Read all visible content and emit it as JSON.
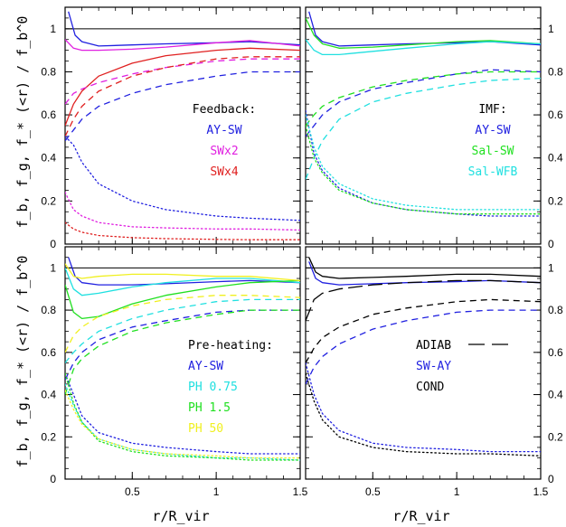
{
  "figure": {
    "ylabel": "f_b, f_g, f_* (<r) / f_b^0",
    "xlabel": "r/R_vir"
  },
  "chart_data": [
    {
      "type": "line",
      "panel": "top-left",
      "xlim": [
        0.1,
        1.5
      ],
      "ylim": [
        0,
        1.1
      ],
      "xticks": [
        "0.5",
        "1",
        "1.5"
      ],
      "yticks": [
        "0",
        "0.2",
        "0.4",
        "0.6",
        "0.8",
        "1"
      ],
      "legend_title": "Feedback:",
      "legend_items": [
        {
          "label": "AY-SW",
          "color": "#2020e0"
        },
        {
          "label": "SWx2",
          "color": "#e020e0"
        },
        {
          "label": "SWx4",
          "color": "#e02020"
        }
      ],
      "reference_line": 1.0,
      "series": [
        {
          "color": "#2020e0",
          "style": "solid",
          "x": [
            0.12,
            0.16,
            0.2,
            0.3,
            0.5,
            0.7,
            1.0,
            1.2,
            1.5
          ],
          "y": [
            1.08,
            0.97,
            0.94,
            0.92,
            0.925,
            0.93,
            0.935,
            0.94,
            0.925
          ]
        },
        {
          "color": "#e020e0",
          "style": "solid",
          "x": [
            0.1,
            0.15,
            0.2,
            0.3,
            0.5,
            0.7,
            1.0,
            1.2,
            1.5
          ],
          "y": [
            0.95,
            0.91,
            0.9,
            0.9,
            0.905,
            0.915,
            0.935,
            0.945,
            0.92
          ]
        },
        {
          "color": "#e02020",
          "style": "solid",
          "x": [
            0.1,
            0.15,
            0.2,
            0.3,
            0.5,
            0.7,
            1.0,
            1.2,
            1.5
          ],
          "y": [
            0.55,
            0.65,
            0.71,
            0.78,
            0.84,
            0.875,
            0.9,
            0.91,
            0.9
          ]
        },
        {
          "color": "#2020e0",
          "style": "dashed",
          "x": [
            0.1,
            0.15,
            0.2,
            0.3,
            0.5,
            0.7,
            1.0,
            1.2,
            1.5
          ],
          "y": [
            0.48,
            0.53,
            0.58,
            0.64,
            0.7,
            0.74,
            0.78,
            0.8,
            0.8
          ]
        },
        {
          "color": "#e020e0",
          "style": "dashed",
          "x": [
            0.1,
            0.15,
            0.2,
            0.3,
            0.5,
            0.7,
            1.0,
            1.2,
            1.5
          ],
          "y": [
            0.65,
            0.7,
            0.72,
            0.75,
            0.79,
            0.82,
            0.85,
            0.86,
            0.86
          ]
        },
        {
          "color": "#e02020",
          "style": "dashed",
          "x": [
            0.1,
            0.15,
            0.2,
            0.3,
            0.5,
            0.7,
            1.0,
            1.2,
            1.5
          ],
          "y": [
            0.5,
            0.58,
            0.64,
            0.71,
            0.78,
            0.82,
            0.86,
            0.87,
            0.87
          ]
        },
        {
          "color": "#2020e0",
          "style": "dotted",
          "x": [
            0.1,
            0.15,
            0.2,
            0.3,
            0.5,
            0.7,
            1.0,
            1.2,
            1.5
          ],
          "y": [
            0.5,
            0.46,
            0.38,
            0.28,
            0.2,
            0.16,
            0.13,
            0.12,
            0.11
          ]
        },
        {
          "color": "#e020e0",
          "style": "dotted",
          "x": [
            0.1,
            0.15,
            0.2,
            0.3,
            0.5,
            0.7,
            1.0,
            1.2,
            1.5
          ],
          "y": [
            0.24,
            0.16,
            0.13,
            0.1,
            0.08,
            0.075,
            0.07,
            0.07,
            0.065
          ]
        },
        {
          "color": "#e02020",
          "style": "dotted",
          "x": [
            0.1,
            0.15,
            0.2,
            0.3,
            0.5,
            0.7,
            1.0,
            1.2,
            1.5
          ],
          "y": [
            0.1,
            0.07,
            0.055,
            0.04,
            0.03,
            0.025,
            0.022,
            0.02,
            0.02
          ]
        }
      ]
    },
    {
      "type": "line",
      "panel": "top-right",
      "xlim": [
        0.1,
        1.5
      ],
      "ylim": [
        0,
        1.1
      ],
      "xticks": [
        "0.5",
        "1",
        "1.5"
      ],
      "yticks": [
        "0",
        "0.2",
        "0.4",
        "0.6",
        "0.8",
        "1"
      ],
      "legend_title": "IMF:",
      "legend_items": [
        {
          "label": "AY-SW",
          "color": "#2020e0"
        },
        {
          "label": "Sal-SW",
          "color": "#20e020"
        },
        {
          "label": "Sal-WFB",
          "color": "#20e0e0"
        }
      ],
      "reference_line": 1.0,
      "series": [
        {
          "color": "#2020e0",
          "style": "solid",
          "x": [
            0.12,
            0.16,
            0.2,
            0.3,
            0.5,
            0.7,
            1.0,
            1.2,
            1.5
          ],
          "y": [
            1.08,
            0.97,
            0.94,
            0.92,
            0.925,
            0.93,
            0.935,
            0.94,
            0.925
          ]
        },
        {
          "color": "#20e020",
          "style": "solid",
          "x": [
            0.1,
            0.15,
            0.2,
            0.3,
            0.5,
            0.7,
            1.0,
            1.2,
            1.5
          ],
          "y": [
            1.05,
            0.97,
            0.93,
            0.91,
            0.915,
            0.925,
            0.94,
            0.945,
            0.93
          ]
        },
        {
          "color": "#20e0e0",
          "style": "solid",
          "x": [
            0.1,
            0.15,
            0.2,
            0.3,
            0.5,
            0.7,
            1.0,
            1.2,
            1.5
          ],
          "y": [
            0.95,
            0.9,
            0.88,
            0.88,
            0.895,
            0.91,
            0.93,
            0.94,
            0.93
          ]
        },
        {
          "color": "#2020e0",
          "style": "dashed",
          "x": [
            0.1,
            0.15,
            0.2,
            0.3,
            0.5,
            0.7,
            1.0,
            1.2,
            1.5
          ],
          "y": [
            0.5,
            0.55,
            0.6,
            0.66,
            0.72,
            0.75,
            0.79,
            0.81,
            0.8
          ]
        },
        {
          "color": "#20e020",
          "style": "dashed",
          "x": [
            0.1,
            0.15,
            0.2,
            0.3,
            0.5,
            0.7,
            1.0,
            1.2,
            1.5
          ],
          "y": [
            0.55,
            0.6,
            0.64,
            0.68,
            0.73,
            0.76,
            0.79,
            0.8,
            0.8
          ]
        },
        {
          "color": "#20e0e0",
          "style": "dashed",
          "x": [
            0.1,
            0.15,
            0.2,
            0.3,
            0.5,
            0.7,
            1.0,
            1.2,
            1.5
          ],
          "y": [
            0.3,
            0.4,
            0.48,
            0.58,
            0.66,
            0.7,
            0.74,
            0.76,
            0.77
          ]
        },
        {
          "color": "#2020e0",
          "style": "dotted",
          "x": [
            0.1,
            0.15,
            0.2,
            0.3,
            0.5,
            0.7,
            1.0,
            1.2,
            1.5
          ],
          "y": [
            0.62,
            0.42,
            0.34,
            0.26,
            0.19,
            0.16,
            0.14,
            0.13,
            0.13
          ]
        },
        {
          "color": "#20e020",
          "style": "dotted",
          "x": [
            0.1,
            0.15,
            0.2,
            0.3,
            0.5,
            0.7,
            1.0,
            1.2,
            1.5
          ],
          "y": [
            0.55,
            0.4,
            0.33,
            0.25,
            0.19,
            0.16,
            0.14,
            0.14,
            0.14
          ]
        },
        {
          "color": "#20e0e0",
          "style": "dotted",
          "x": [
            0.1,
            0.15,
            0.2,
            0.3,
            0.5,
            0.7,
            1.0,
            1.2,
            1.5
          ],
          "y": [
            0.6,
            0.45,
            0.36,
            0.28,
            0.21,
            0.18,
            0.16,
            0.16,
            0.16
          ]
        }
      ]
    },
    {
      "type": "line",
      "panel": "bottom-left",
      "xlim": [
        0.1,
        1.5
      ],
      "ylim": [
        0,
        1.1
      ],
      "xticks": [
        "0.5",
        "1",
        "1.5"
      ],
      "yticks": [
        "0",
        "0.2",
        "0.4",
        "0.6",
        "0.8",
        "1"
      ],
      "legend_title": "Pre-heating:",
      "legend_items": [
        {
          "label": "AY-SW",
          "color": "#2020e0"
        },
        {
          "label": "PH 0.75",
          "color": "#20e0e0"
        },
        {
          "label": "PH 1.5",
          "color": "#20e020"
        },
        {
          "label": "PH 50",
          "color": "#f0f020"
        }
      ],
      "reference_line": 1.0,
      "series": [
        {
          "color": "#2020e0",
          "style": "solid",
          "x": [
            0.12,
            0.16,
            0.2,
            0.3,
            0.5,
            0.7,
            1.0,
            1.2,
            1.5
          ],
          "y": [
            1.05,
            0.96,
            0.93,
            0.92,
            0.92,
            0.925,
            0.935,
            0.94,
            0.93
          ]
        },
        {
          "color": "#20e0e0",
          "style": "solid",
          "x": [
            0.1,
            0.15,
            0.2,
            0.3,
            0.5,
            0.7,
            1.0,
            1.2,
            1.5
          ],
          "y": [
            1.0,
            0.9,
            0.87,
            0.88,
            0.91,
            0.93,
            0.95,
            0.95,
            0.93
          ]
        },
        {
          "color": "#20e020",
          "style": "solid",
          "x": [
            0.1,
            0.15,
            0.2,
            0.3,
            0.5,
            0.7,
            1.0,
            1.2,
            1.5
          ],
          "y": [
            0.92,
            0.79,
            0.76,
            0.77,
            0.83,
            0.87,
            0.91,
            0.93,
            0.94
          ]
        },
        {
          "color": "#f0f020",
          "style": "solid",
          "x": [
            0.1,
            0.15,
            0.2,
            0.3,
            0.5,
            0.7,
            1.0,
            1.2,
            1.5
          ],
          "y": [
            1.02,
            0.96,
            0.95,
            0.96,
            0.97,
            0.97,
            0.96,
            0.96,
            0.94
          ]
        },
        {
          "color": "#2020e0",
          "style": "dashed",
          "x": [
            0.1,
            0.15,
            0.2,
            0.3,
            0.5,
            0.7,
            1.0,
            1.2,
            1.5
          ],
          "y": [
            0.47,
            0.55,
            0.6,
            0.66,
            0.72,
            0.75,
            0.79,
            0.8,
            0.8
          ]
        },
        {
          "color": "#20e0e0",
          "style": "dashed",
          "x": [
            0.1,
            0.15,
            0.2,
            0.3,
            0.5,
            0.7,
            1.0,
            1.2,
            1.5
          ],
          "y": [
            0.55,
            0.6,
            0.64,
            0.7,
            0.76,
            0.8,
            0.84,
            0.85,
            0.85
          ]
        },
        {
          "color": "#20e020",
          "style": "dashed",
          "x": [
            0.1,
            0.15,
            0.2,
            0.3,
            0.5,
            0.7,
            1.0,
            1.2,
            1.5
          ],
          "y": [
            0.4,
            0.52,
            0.57,
            0.63,
            0.7,
            0.74,
            0.78,
            0.8,
            0.8
          ]
        },
        {
          "color": "#f0f020",
          "style": "dashed",
          "x": [
            0.1,
            0.15,
            0.2,
            0.3,
            0.5,
            0.7,
            1.0,
            1.2,
            1.5
          ],
          "y": [
            0.6,
            0.68,
            0.72,
            0.77,
            0.82,
            0.85,
            0.87,
            0.87,
            0.86
          ]
        },
        {
          "color": "#2020e0",
          "style": "dotted",
          "x": [
            0.1,
            0.15,
            0.2,
            0.3,
            0.5,
            0.7,
            1.0,
            1.2,
            1.5
          ],
          "y": [
            0.5,
            0.4,
            0.3,
            0.22,
            0.17,
            0.15,
            0.13,
            0.12,
            0.12
          ]
        },
        {
          "color": "#20e0e0",
          "style": "dotted",
          "x": [
            0.1,
            0.15,
            0.2,
            0.3,
            0.5,
            0.7,
            1.0,
            1.2,
            1.5
          ],
          "y": [
            0.45,
            0.35,
            0.27,
            0.19,
            0.14,
            0.12,
            0.1,
            0.1,
            0.09
          ]
        },
        {
          "color": "#20e020",
          "style": "dotted",
          "x": [
            0.1,
            0.15,
            0.2,
            0.3,
            0.5,
            0.7,
            1.0,
            1.2,
            1.5
          ],
          "y": [
            0.5,
            0.36,
            0.27,
            0.18,
            0.13,
            0.11,
            0.1,
            0.09,
            0.09
          ]
        },
        {
          "color": "#f0f020",
          "style": "dotted",
          "x": [
            0.1,
            0.15,
            0.2,
            0.3,
            0.5,
            0.7,
            1.0,
            1.2,
            1.5
          ],
          "y": [
            0.42,
            0.33,
            0.26,
            0.19,
            0.14,
            0.12,
            0.11,
            0.1,
            0.1
          ]
        }
      ]
    },
    {
      "type": "line",
      "panel": "bottom-right",
      "xlim": [
        0.1,
        1.5
      ],
      "ylim": [
        0,
        1.1
      ],
      "xticks": [
        "0.5",
        "1",
        "1.5"
      ],
      "yticks": [
        "0",
        "0.2",
        "0.4",
        "0.6",
        "0.8",
        "1"
      ],
      "legend_title": "",
      "legend_items": [
        {
          "label": "ADIAB",
          "color": "#000000",
          "line_sample": "long-dash"
        },
        {
          "label": "SW-AY",
          "color": "#2020e0"
        },
        {
          "label": "COND",
          "color": "#000000"
        }
      ],
      "reference_line": 1.0,
      "series": [
        {
          "color": "#000000",
          "style": "solid",
          "x": [
            0.12,
            0.16,
            0.2,
            0.3,
            0.5,
            0.7,
            1.0,
            1.2,
            1.5
          ],
          "y": [
            1.05,
            0.98,
            0.96,
            0.95,
            0.955,
            0.96,
            0.97,
            0.97,
            0.96
          ]
        },
        {
          "color": "#2020e0",
          "style": "solid",
          "x": [
            0.12,
            0.16,
            0.2,
            0.3,
            0.5,
            0.7,
            1.0,
            1.2,
            1.5
          ],
          "y": [
            1.03,
            0.95,
            0.93,
            0.92,
            0.925,
            0.93,
            0.935,
            0.94,
            0.93
          ]
        },
        {
          "color": "#000000",
          "style": "longdash",
          "x": [
            0.1,
            0.15,
            0.2,
            0.3,
            0.5,
            0.7,
            1.0,
            1.2,
            1.5
          ],
          "y": [
            0.75,
            0.85,
            0.88,
            0.9,
            0.92,
            0.93,
            0.94,
            0.94,
            0.93
          ]
        },
        {
          "color": "#000000",
          "style": "dashed",
          "x": [
            0.1,
            0.15,
            0.2,
            0.3,
            0.5,
            0.7,
            1.0,
            1.2,
            1.5
          ],
          "y": [
            0.55,
            0.62,
            0.67,
            0.72,
            0.78,
            0.81,
            0.84,
            0.85,
            0.84
          ]
        },
        {
          "color": "#2020e0",
          "style": "dashed",
          "x": [
            0.1,
            0.15,
            0.2,
            0.3,
            0.5,
            0.7,
            1.0,
            1.2,
            1.5
          ],
          "y": [
            0.45,
            0.53,
            0.58,
            0.64,
            0.71,
            0.75,
            0.79,
            0.8,
            0.8
          ]
        },
        {
          "color": "#000000",
          "style": "dotted",
          "x": [
            0.1,
            0.15,
            0.2,
            0.3,
            0.5,
            0.7,
            1.0,
            1.2,
            1.5
          ],
          "y": [
            0.5,
            0.37,
            0.28,
            0.2,
            0.15,
            0.13,
            0.12,
            0.12,
            0.11
          ]
        },
        {
          "color": "#2020e0",
          "style": "dotted",
          "x": [
            0.1,
            0.15,
            0.2,
            0.3,
            0.5,
            0.7,
            1.0,
            1.2,
            1.5
          ],
          "y": [
            0.55,
            0.4,
            0.31,
            0.23,
            0.17,
            0.15,
            0.14,
            0.13,
            0.13
          ]
        }
      ]
    }
  ]
}
